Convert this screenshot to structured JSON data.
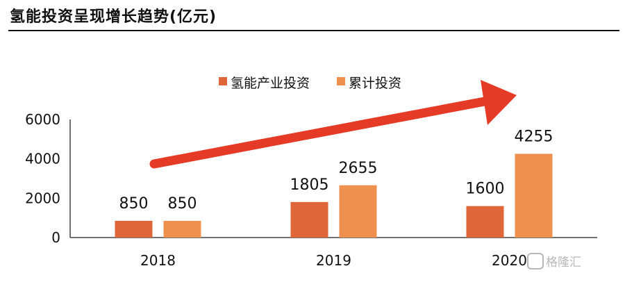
{
  "chart_data": {
    "type": "bar",
    "title": "氢能投资呈现增长趋势(亿元)",
    "categories": [
      "2018",
      "2019",
      "2020"
    ],
    "series": [
      {
        "name": "氢能产业投资",
        "values": [
          850,
          1805,
          1600
        ],
        "color": "#df6638"
      },
      {
        "name": "累计投资",
        "values": [
          850,
          2655,
          4255
        ],
        "color": "#ee914f"
      }
    ],
    "yticks": [
      "0",
      "2000",
      "4000",
      "6000"
    ],
    "ylim": [
      0,
      6000
    ],
    "legend_position": "top",
    "annotation": "red upward trend arrow",
    "arrow_color": "#e53a26"
  },
  "watermark": {
    "text": "格隆汇",
    "icon": "glh-logo-icon"
  }
}
